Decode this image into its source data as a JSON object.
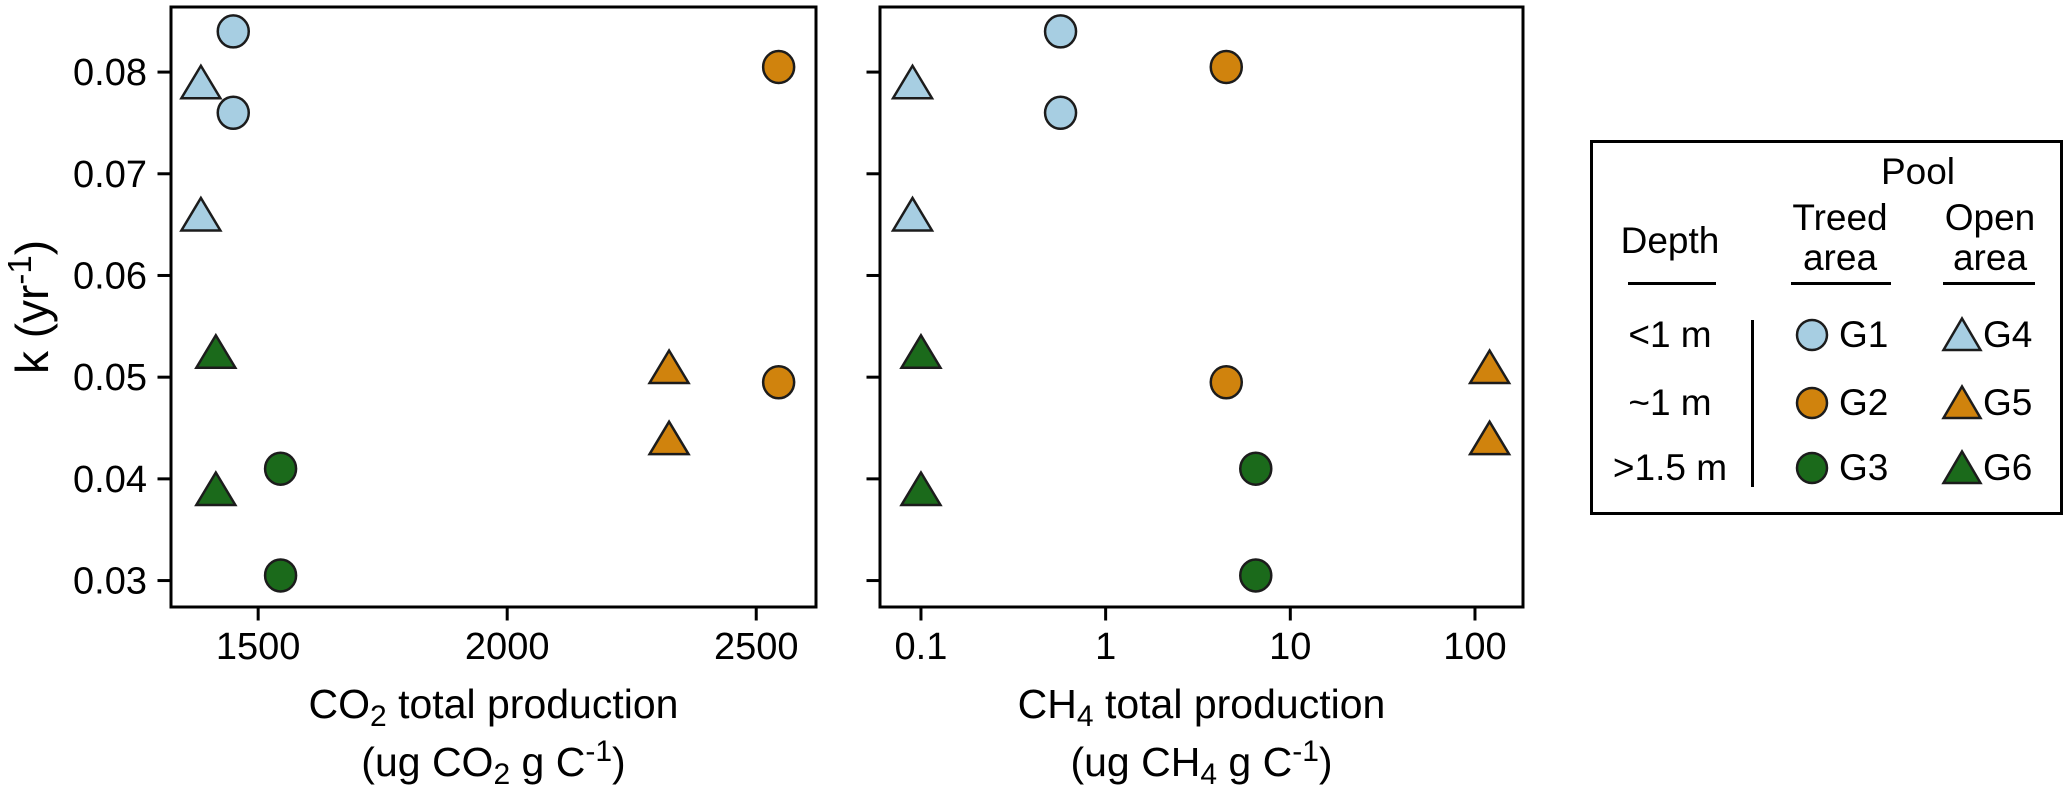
{
  "figure": {
    "colors": {
      "light_blue": "#A7CEE2",
      "orange": "#D0830D",
      "dark_green": "#1B6A1B",
      "edge": "#1C1C1C",
      "frame": "#000000"
    },
    "ylabel_segments": [
      {
        "t": "k (yr"
      },
      {
        "t": "-1",
        "sup": true
      },
      {
        "t": ")"
      }
    ]
  },
  "chart_data": [
    {
      "id": "co2-plot",
      "type": "scatter",
      "x_scale": "linear",
      "x_domain": [
        1325,
        2620
      ],
      "y_domain": [
        0.0274,
        0.0864
      ],
      "grid": false,
      "x_ticks": [
        {
          "v": 1500,
          "label": "1500"
        },
        {
          "v": 2000,
          "label": "2000"
        },
        {
          "v": 2500,
          "label": "2500"
        }
      ],
      "y_ticks": [
        {
          "v": 0.03,
          "label": "0.03"
        },
        {
          "v": 0.04,
          "label": "0.04"
        },
        {
          "v": 0.05,
          "label": "0.05"
        },
        {
          "v": 0.06,
          "label": "0.06"
        },
        {
          "v": 0.07,
          "label": "0.07"
        },
        {
          "v": 0.08,
          "label": "0.08"
        }
      ],
      "show_y_tick_labels": true,
      "xlabel_lines": [
        [
          {
            "t": "CO"
          },
          {
            "t": "2",
            "sub": true
          },
          {
            "t": " total production"
          }
        ],
        [
          {
            "t": "(ug CO"
          },
          {
            "t": "2",
            "sub": true
          },
          {
            "t": " g C"
          },
          {
            "t": "-1",
            "sup": true
          },
          {
            "t": ")"
          }
        ]
      ],
      "series": [
        {
          "name": "G1",
          "pool": "Treed area",
          "depth": "<1 m",
          "marker": "circle",
          "color": "light_blue",
          "points": [
            [
              1450,
              0.084
            ],
            [
              1450,
              0.076
            ]
          ]
        },
        {
          "name": "G2",
          "pool": "Treed area",
          "depth": "~1 m",
          "marker": "circle",
          "color": "orange",
          "points": [
            [
              2545,
              0.0805
            ],
            [
              2545,
              0.0495
            ]
          ]
        },
        {
          "name": "G3",
          "pool": "Treed area",
          "depth": ">1.5 m",
          "marker": "circle",
          "color": "dark_green",
          "points": [
            [
              1545,
              0.041
            ],
            [
              1545,
              0.0305
            ]
          ]
        },
        {
          "name": "G4",
          "pool": "Open area",
          "depth": "<1 m",
          "marker": "triangle",
          "color": "light_blue",
          "points": [
            [
              1385,
              0.079
            ],
            [
              1385,
              0.066
            ]
          ]
        },
        {
          "name": "G5",
          "pool": "Open area",
          "depth": "~1 m",
          "marker": "triangle",
          "color": "orange",
          "points": [
            [
              2325,
              0.051
            ],
            [
              2325,
              0.044
            ]
          ]
        },
        {
          "name": "G6",
          "pool": "Open area",
          "depth": ">1.5 m",
          "marker": "triangle",
          "color": "dark_green",
          "points": [
            [
              1415,
              0.0525
            ],
            [
              1415,
              0.039
            ]
          ]
        }
      ]
    },
    {
      "id": "ch4-plot",
      "type": "scatter",
      "x_scale": "log",
      "x_domain": [
        0.06,
        182
      ],
      "y_domain": [
        0.0274,
        0.0864
      ],
      "grid": false,
      "x_ticks": [
        {
          "v": 0.1,
          "label": "0.1"
        },
        {
          "v": 1,
          "label": "1"
        },
        {
          "v": 10,
          "label": "10"
        },
        {
          "v": 100,
          "label": "100"
        }
      ],
      "y_ticks": [
        {
          "v": 0.03,
          "label": ""
        },
        {
          "v": 0.04,
          "label": ""
        },
        {
          "v": 0.05,
          "label": ""
        },
        {
          "v": 0.06,
          "label": ""
        },
        {
          "v": 0.07,
          "label": ""
        },
        {
          "v": 0.08,
          "label": ""
        }
      ],
      "show_y_tick_labels": false,
      "xlabel_lines": [
        [
          {
            "t": "CH"
          },
          {
            "t": "4",
            "sub": true
          },
          {
            "t": " total production"
          }
        ],
        [
          {
            "t": "(ug CH"
          },
          {
            "t": "4",
            "sub": true
          },
          {
            "t": " g C"
          },
          {
            "t": "-1",
            "sup": true
          },
          {
            "t": ")"
          }
        ]
      ],
      "series": [
        {
          "name": "G1",
          "pool": "Treed area",
          "depth": "<1 m",
          "marker": "circle",
          "color": "light_blue",
          "points": [
            [
              0.57,
              0.084
            ],
            [
              0.57,
              0.076
            ]
          ]
        },
        {
          "name": "G2",
          "pool": "Treed area",
          "depth": "~1 m",
          "marker": "circle",
          "color": "orange",
          "points": [
            [
              4.5,
              0.0805
            ],
            [
              4.5,
              0.0495
            ]
          ]
        },
        {
          "name": "G3",
          "pool": "Treed area",
          "depth": ">1.5 m",
          "marker": "circle",
          "color": "dark_green",
          "points": [
            [
              6.5,
              0.041
            ],
            [
              6.5,
              0.0305
            ]
          ]
        },
        {
          "name": "G4",
          "pool": "Open area",
          "depth": "<1 m",
          "marker": "triangle",
          "color": "light_blue",
          "points": [
            [
              0.09,
              0.079
            ],
            [
              0.09,
              0.066
            ]
          ]
        },
        {
          "name": "G5",
          "pool": "Open area",
          "depth": "~1 m",
          "marker": "triangle",
          "color": "orange",
          "points": [
            [
              120,
              0.051
            ],
            [
              120,
              0.044
            ]
          ]
        },
        {
          "name": "G6",
          "pool": "Open area",
          "depth": ">1.5 m",
          "marker": "triangle",
          "color": "dark_green",
          "points": [
            [
              0.1,
              0.0525
            ],
            [
              0.1,
              0.039
            ]
          ]
        }
      ]
    }
  ],
  "legend": {
    "title": "Pool",
    "depth_header": "Depth",
    "treed_header_line1": "Treed",
    "treed_header_line2": "area",
    "open_header_line1": "Open",
    "open_header_line2": "area",
    "rows": [
      {
        "depth": "<1 m",
        "treed_label": "G1",
        "treed_marker": "circle",
        "open_label": "G4",
        "open_marker": "triangle",
        "color": "light_blue"
      },
      {
        "depth": "~1 m",
        "treed_label": "G2",
        "treed_marker": "circle",
        "open_label": "G5",
        "open_marker": "triangle",
        "color": "orange"
      },
      {
        "depth": ">1.5 m",
        "treed_label": "G3",
        "treed_marker": "circle",
        "open_label": "G6",
        "open_marker": "triangle",
        "color": "dark_green"
      }
    ]
  }
}
